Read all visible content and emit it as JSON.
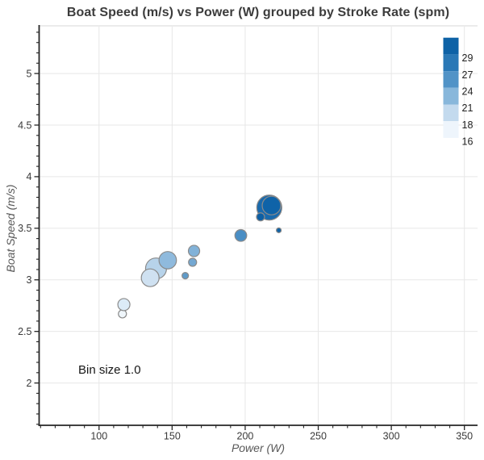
{
  "chart_data": {
    "type": "scatter",
    "title": "Boat Speed (m/s) vs Power (W) grouped by Stroke Rate (spm)",
    "xlabel": "Power (W)",
    "ylabel": "Boat Speed (m/s)",
    "annotation": "Bin size 1.0",
    "grid": true,
    "xlim": [
      59,
      359
    ],
    "ylim": [
      1.59,
      5.47
    ],
    "x_ticks": [
      100,
      150,
      200,
      250,
      300,
      350
    ],
    "y_ticks": [
      2,
      2.5,
      3,
      3.5,
      4,
      4.5,
      5
    ],
    "x_minor_step": 10,
    "y_minor_step": 0.1,
    "grid_color": "#e7e7e7",
    "spine_color": "#262626",
    "tick_label_color": "#3a3a3a",
    "marker_stroke_color": "#8a8a8a",
    "legend": {
      "position": "top-right",
      "bins": [
        {
          "label": "29",
          "color": "#0e62a6"
        },
        {
          "label": "27",
          "color": "#2a78b6"
        },
        {
          "label": "24",
          "color": "#5193c7"
        },
        {
          "label": "21",
          "color": "#88b7db"
        },
        {
          "label": "18",
          "color": "#c3daee"
        },
        {
          "label": "16",
          "color": "#eef5fc"
        }
      ]
    },
    "points": [
      {
        "power": 116,
        "speed": 2.67,
        "stroke_bin": 16,
        "radius_px": 5,
        "color": "#eff6fb"
      },
      {
        "power": 117,
        "speed": 2.76,
        "stroke_bin": 16,
        "radius_px": 7.5,
        "color": "#dcebf7"
      },
      {
        "power": 139,
        "speed": 3.11,
        "stroke_bin": 18,
        "radius_px": 13,
        "color": "#b7d3ea"
      },
      {
        "power": 135,
        "speed": 3.02,
        "stroke_bin": 18,
        "radius_px": 11,
        "color": "#cfe1f1"
      },
      {
        "power": 147,
        "speed": 3.19,
        "stroke_bin": 21,
        "radius_px": 10.8,
        "color": "#8fbadd"
      },
      {
        "power": 164,
        "speed": 3.17,
        "stroke_bin": 21,
        "radius_px": 5,
        "color": "#74a8d2"
      },
      {
        "power": 165,
        "speed": 3.28,
        "stroke_bin": 21,
        "radius_px": 7,
        "color": "#82b2d8"
      },
      {
        "power": 159,
        "speed": 3.04,
        "stroke_bin": 24,
        "radius_px": 4,
        "color": "#5f9bc9"
      },
      {
        "power": 197,
        "speed": 3.43,
        "stroke_bin": 24,
        "radius_px": 7.3,
        "color": "#4a8ec4"
      },
      {
        "power": 216.5,
        "speed": 3.7,
        "stroke_bin": 29,
        "radius_px": 15.5,
        "color": "#1a6aad"
      },
      {
        "power": 218,
        "speed": 3.72,
        "stroke_bin": 29,
        "radius_px": 11.5,
        "color": "#0f63a8"
      },
      {
        "power": 210.5,
        "speed": 3.61,
        "stroke_bin": 29,
        "radius_px": 5,
        "color": "#0d5fa4"
      },
      {
        "power": 223,
        "speed": 3.48,
        "stroke_bin": 29,
        "radius_px": 3,
        "color": "#0f62a6"
      }
    ]
  }
}
